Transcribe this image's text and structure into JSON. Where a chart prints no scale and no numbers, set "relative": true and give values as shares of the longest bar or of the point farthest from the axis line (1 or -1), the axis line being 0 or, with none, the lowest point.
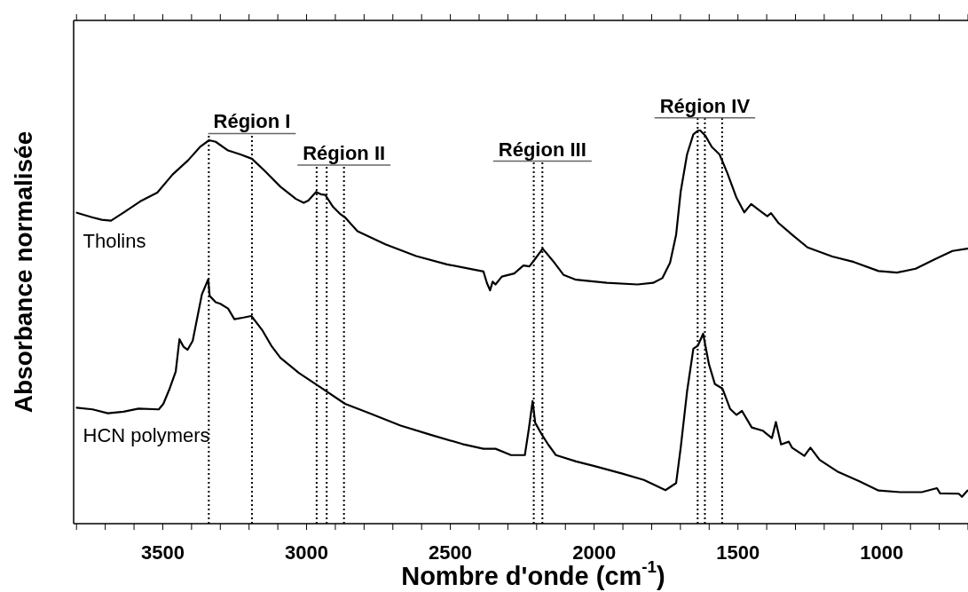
{
  "chart_data": {
    "type": "line",
    "xlabel": "Nombre d'onde (cm$^{-1}$)",
    "ylabel": "Absorbance normalisée",
    "relative": true,
    "marker": "none",
    "xlim": [
      3810,
      700
    ],
    "xticks": [
      {
        "value": 3800,
        "label": null
      },
      {
        "value": 3700,
        "label": null
      },
      {
        "value": 3600,
        "label": null
      },
      3500,
      {
        "value": 3400,
        "label": null
      },
      {
        "value": 3300,
        "label": null
      },
      {
        "value": 3200,
        "label": null
      },
      {
        "value": 3100,
        "label": null
      },
      3000,
      {
        "value": 2900,
        "label": null
      },
      {
        "value": 2800,
        "label": null
      },
      {
        "value": 2700,
        "label": null
      },
      {
        "value": 2600,
        "label": null
      },
      2500,
      {
        "value": 2400,
        "label": null
      },
      {
        "value": 2300,
        "label": null
      },
      {
        "value": 2200,
        "label": null
      },
      {
        "value": 2100,
        "label": null
      },
      2000,
      {
        "value": 1900,
        "label": null
      },
      {
        "value": 1800,
        "label": null
      },
      {
        "value": 1700,
        "label": null
      },
      {
        "value": 1600,
        "label": null
      },
      1500,
      {
        "value": 1400,
        "label": null
      },
      {
        "value": 1300,
        "label": null
      },
      {
        "value": 1200,
        "label": null
      },
      {
        "value": 1100,
        "label": null
      },
      1000,
      {
        "value": 900,
        "label": null
      },
      {
        "value": 800,
        "label": null
      },
      {
        "value": 700,
        "label": null
      }
    ],
    "series": [
      {
        "name": "Tholins",
        "color": "#000000",
        "x": [
          3799,
          3744,
          3712,
          3680,
          3637,
          3578,
          3519,
          3466,
          3412,
          3369,
          3339,
          3316,
          3273,
          3230,
          3190,
          3144,
          3091,
          3037,
          3010,
          2994,
          2967,
          2951,
          2935,
          2908,
          2882,
          2866,
          2823,
          2726,
          2619,
          2512,
          2385,
          2373,
          2362,
          2353,
          2343,
          2321,
          2278,
          2246,
          2225,
          2203,
          2179,
          2138,
          2106,
          2063,
          1956,
          1849,
          1795,
          1763,
          1736,
          1715,
          1699,
          1677,
          1655,
          1634,
          1613,
          1591,
          1564,
          1537,
          1505,
          1478,
          1454,
          1425,
          1398,
          1385,
          1359,
          1311,
          1258,
          1172,
          1097,
          1011,
          947,
          882,
          818,
          754,
          702
        ],
        "values": [
          0.789,
          0.777,
          0.771,
          0.769,
          0.789,
          0.818,
          0.84,
          0.886,
          0.922,
          0.957,
          0.973,
          0.969,
          0.947,
          0.937,
          0.926,
          0.894,
          0.855,
          0.824,
          0.814,
          0.82,
          0.842,
          0.836,
          0.834,
          0.804,
          0.785,
          0.777,
          0.742,
          0.709,
          0.679,
          0.658,
          0.64,
          0.611,
          0.592,
          0.614,
          0.607,
          0.627,
          0.635,
          0.655,
          0.653,
          0.674,
          0.698,
          0.662,
          0.631,
          0.619,
          0.611,
          0.607,
          0.611,
          0.623,
          0.662,
          0.733,
          0.843,
          0.937,
          0.988,
          1.0,
          0.984,
          0.956,
          0.937,
          0.89,
          0.827,
          0.79,
          0.811,
          0.795,
          0.78,
          0.788,
          0.763,
          0.733,
          0.701,
          0.678,
          0.664,
          0.641,
          0.637,
          0.647,
          0.67,
          0.692,
          0.698
        ]
      },
      {
        "name": "HCN polymers",
        "color": "#000000",
        "x": [
          3799,
          3744,
          3691,
          3637,
          3584,
          3514,
          3498,
          3476,
          3455,
          3442,
          3428,
          3414,
          3396,
          3380,
          3364,
          3342,
          3337,
          3316,
          3300,
          3273,
          3251,
          3219,
          3192,
          3155,
          3123,
          3091,
          3026,
          2962,
          2866,
          2780,
          2673,
          2566,
          2458,
          2385,
          2343,
          2289,
          2241,
          2227,
          2214,
          2205,
          2181,
          2160,
          2133,
          2063,
          1999,
          1902,
          1827,
          1752,
          1715,
          1699,
          1677,
          1655,
          1639,
          1621,
          1601,
          1580,
          1554,
          1527,
          1505,
          1486,
          1452,
          1414,
          1382,
          1368,
          1350,
          1323,
          1312,
          1269,
          1248,
          1216,
          1151,
          1076,
          1011,
          936,
          861,
          808,
          797,
          732,
          721,
          702
        ],
        "values": [
          0.294,
          0.29,
          0.28,
          0.284,
          0.292,
          0.29,
          0.304,
          0.343,
          0.386,
          0.468,
          0.449,
          0.441,
          0.464,
          0.523,
          0.582,
          0.62,
          0.578,
          0.562,
          0.558,
          0.546,
          0.519,
          0.523,
          0.527,
          0.492,
          0.452,
          0.421,
          0.382,
          0.351,
          0.304,
          0.28,
          0.249,
          0.225,
          0.202,
          0.19,
          0.19,
          0.174,
          0.174,
          0.241,
          0.311,
          0.256,
          0.225,
          0.201,
          0.174,
          0.158,
          0.146,
          0.127,
          0.111,
          0.085,
          0.103,
          0.193,
          0.335,
          0.444,
          0.452,
          0.482,
          0.405,
          0.354,
          0.343,
          0.291,
          0.276,
          0.286,
          0.244,
          0.236,
          0.217,
          0.258,
          0.201,
          0.208,
          0.193,
          0.172,
          0.193,
          0.162,
          0.131,
          0.107,
          0.084,
          0.08,
          0.08,
          0.09,
          0.077,
          0.076,
          0.068,
          0.084
        ]
      }
    ],
    "ref_lines": [
      {
        "axis": "x",
        "value": 3340,
        "line_style": "dotted"
      },
      {
        "axis": "x",
        "value": 3190,
        "line_style": "dotted"
      },
      {
        "axis": "x",
        "value": 2965,
        "line_style": "dotted"
      },
      {
        "axis": "x",
        "value": 2930,
        "line_style": "dotted"
      },
      {
        "axis": "x",
        "value": 2870,
        "line_style": "dotted"
      },
      {
        "axis": "x",
        "value": 2210,
        "line_style": "dotted"
      },
      {
        "axis": "x",
        "value": 2180,
        "line_style": "dotted"
      },
      {
        "axis": "x",
        "value": 1640,
        "line_style": "dotted"
      },
      {
        "axis": "x",
        "value": 1615,
        "line_style": "dotted"
      },
      {
        "axis": "x",
        "value": 1555,
        "line_style": "dotted"
      }
    ],
    "annotations": [
      {
        "text": "Région I",
        "x": 3190,
        "y": 0.99
      },
      {
        "text": "Région II",
        "x": 2870,
        "y": 0.91
      },
      {
        "text": "Région III",
        "x": 2180,
        "y": 0.92
      },
      {
        "text": "Région IV",
        "x": 1615,
        "y": 1.03
      }
    ]
  }
}
